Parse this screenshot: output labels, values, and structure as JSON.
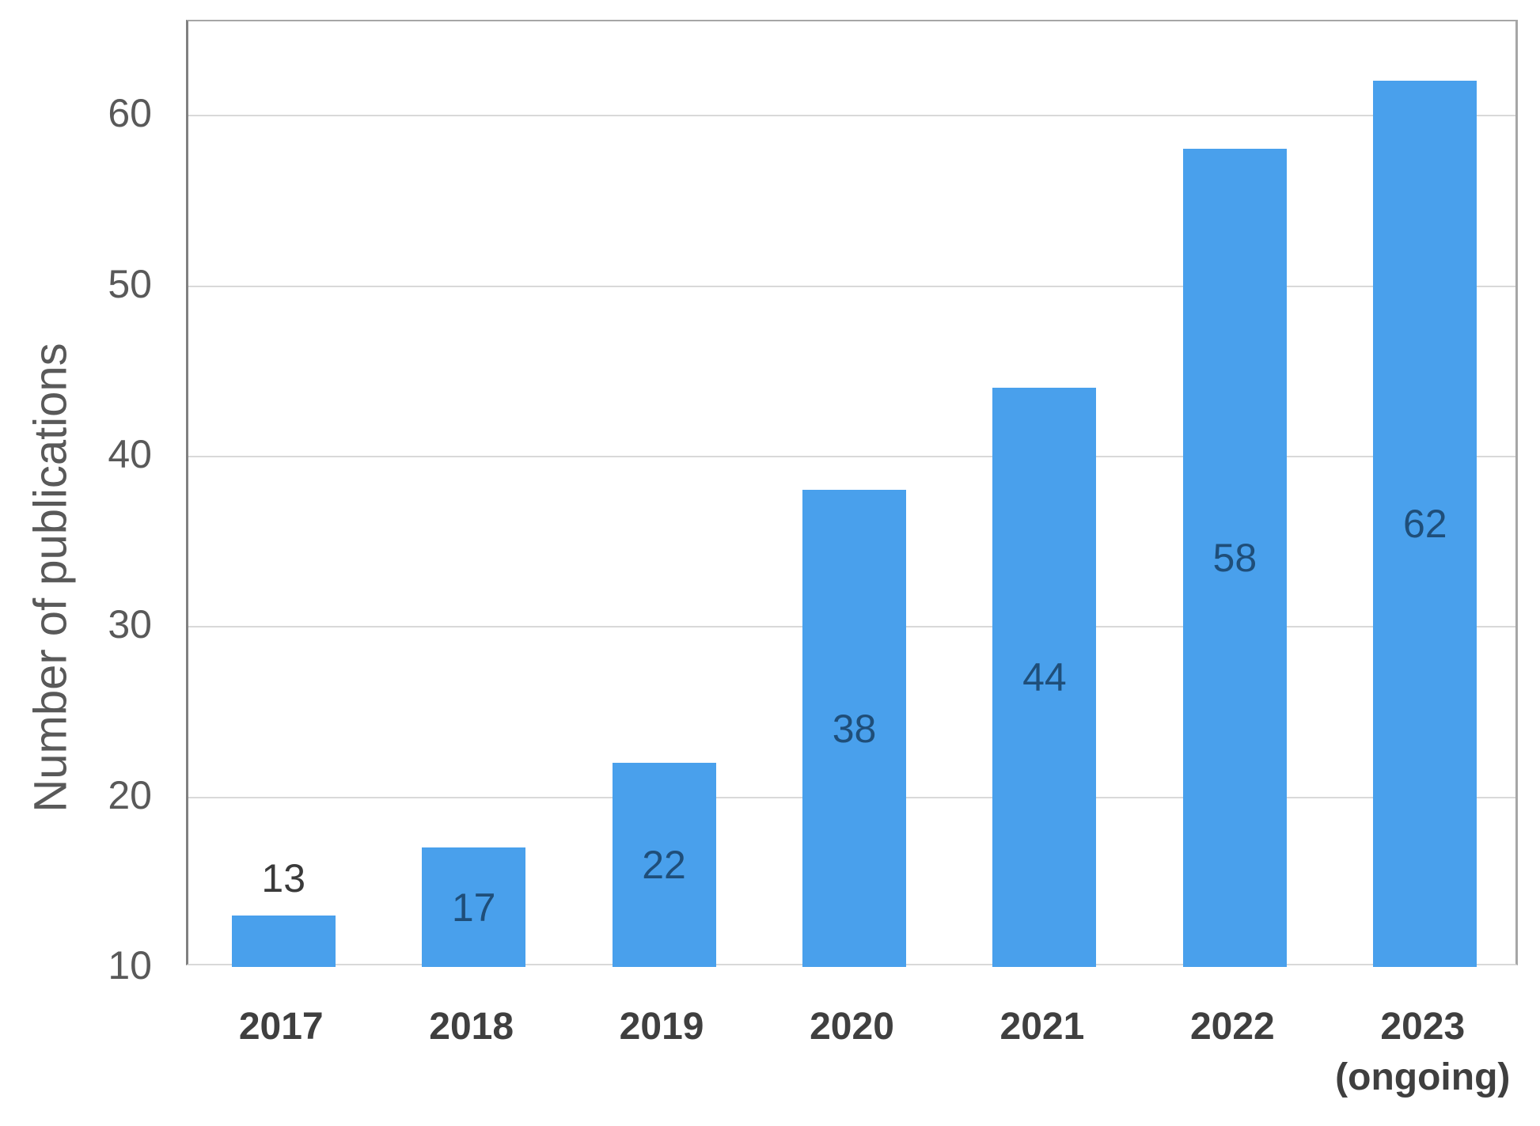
{
  "chart_data": {
    "type": "bar",
    "title": "",
    "categories": [
      "2017",
      "2018",
      "2019",
      "2020",
      "2021",
      "2022",
      "2023"
    ],
    "category_sublabels": [
      "",
      "",
      "",
      "",
      "",
      "",
      "(ongoing)"
    ],
    "values": [
      13,
      17,
      22,
      38,
      44,
      58,
      62
    ],
    "value_label_positions": [
      "outside",
      "inside",
      "inside",
      "inside",
      "inside",
      "inside",
      "inside"
    ],
    "xlabel": "",
    "ylabel": "Number of publications",
    "y_ticks": [
      10,
      20,
      30,
      40,
      50,
      60
    ],
    "ylim": [
      10,
      65.5
    ],
    "grid": "horizontal",
    "legend": "none",
    "colors": {
      "bar_fill": "#49a0ec",
      "value_label_inside": "#1f4e79",
      "value_label_outside": "#3a3a3a",
      "axis_tick_label": "#595959",
      "category_label": "#3f3f3f",
      "gridline": "#d9d9d9",
      "plot_border": "#a6a6a6"
    }
  }
}
